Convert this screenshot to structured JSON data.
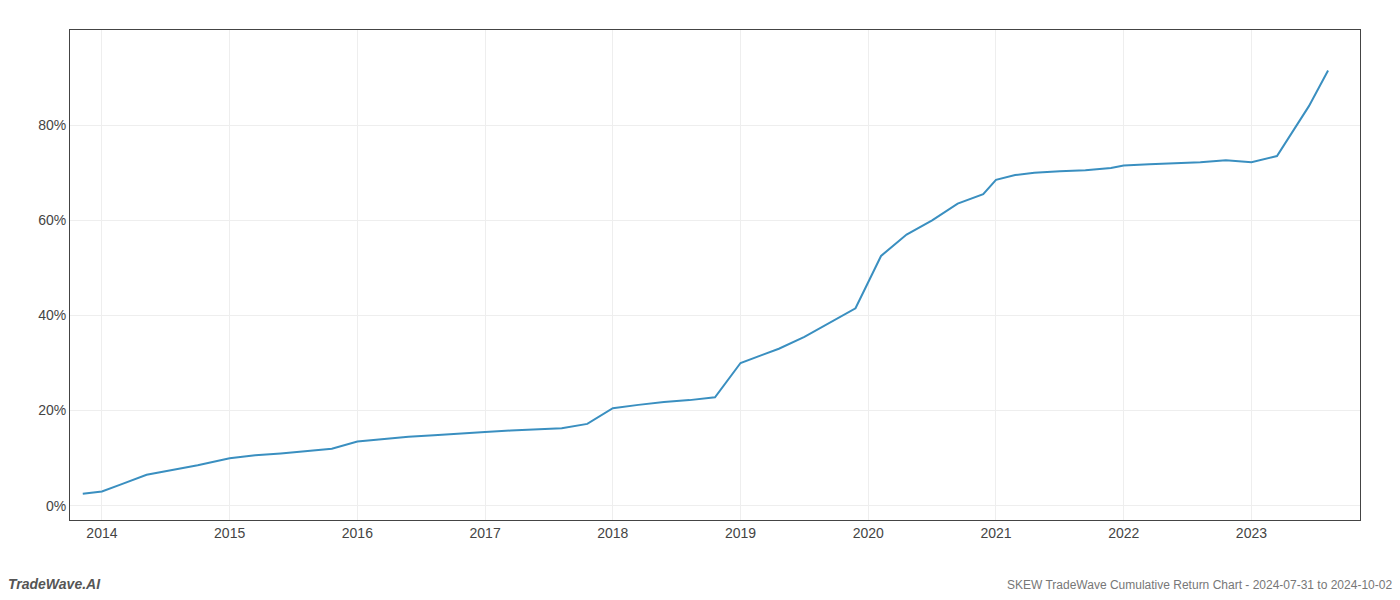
{
  "chart_data": {
    "type": "line",
    "title": "SKEW TradeWave Cumulative Return Chart - 2024-07-31 to 2024-10-02",
    "annotations": [
      "TradeWave.AI"
    ],
    "x": [
      2013.85,
      2014.0,
      2014.15,
      2014.35,
      2014.55,
      2014.75,
      2015.0,
      2015.2,
      2015.4,
      2015.6,
      2015.8,
      2016.0,
      2016.2,
      2016.4,
      2016.6,
      2016.8,
      2017.0,
      2017.2,
      2017.4,
      2017.6,
      2017.8,
      2018.0,
      2018.2,
      2018.4,
      2018.6,
      2018.8,
      2019.0,
      2019.15,
      2019.3,
      2019.5,
      2019.7,
      2019.9,
      2020.1,
      2020.3,
      2020.5,
      2020.7,
      2020.9,
      2021.0,
      2021.15,
      2021.3,
      2021.5,
      2021.7,
      2021.9,
      2022.0,
      2022.2,
      2022.4,
      2022.6,
      2022.8,
      2023.0,
      2023.2,
      2023.45,
      2023.6
    ],
    "values": [
      0.025,
      0.03,
      0.045,
      0.065,
      0.075,
      0.085,
      0.1,
      0.106,
      0.11,
      0.115,
      0.12,
      0.135,
      0.14,
      0.145,
      0.148,
      0.152,
      0.155,
      0.158,
      0.16,
      0.163,
      0.172,
      0.205,
      0.212,
      0.218,
      0.222,
      0.228,
      0.3,
      0.315,
      0.33,
      0.355,
      0.385,
      0.415,
      0.525,
      0.57,
      0.6,
      0.635,
      0.655,
      0.685,
      0.695,
      0.7,
      0.703,
      0.705,
      0.71,
      0.715,
      0.718,
      0.72,
      0.722,
      0.726,
      0.722,
      0.735,
      0.84,
      0.915
    ],
    "color": "#3a8fc0",
    "xlim": [
      2013.75,
      2023.85
    ],
    "ylim": [
      -0.03,
      1.0
    ],
    "xticks": [
      2014,
      2015,
      2016,
      2017,
      2018,
      2019,
      2020,
      2021,
      2022,
      2023
    ],
    "yticks": [
      {
        "value": 0.0,
        "label": "0%"
      },
      {
        "value": 0.2,
        "label": "20%"
      },
      {
        "value": 0.4,
        "label": "40%"
      },
      {
        "value": 0.6,
        "label": "60%"
      },
      {
        "value": 0.8,
        "label": "80%"
      }
    ],
    "grid": true
  }
}
